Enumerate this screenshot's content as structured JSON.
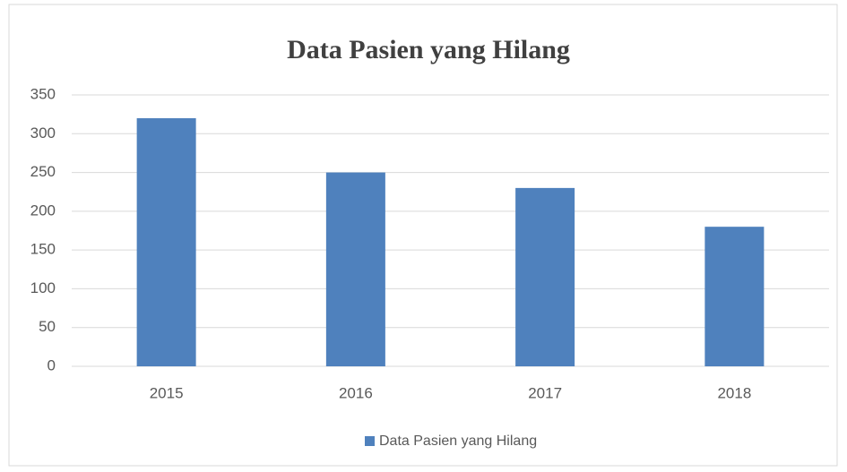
{
  "chart_data": {
    "type": "bar",
    "title": "Data Pasien yang Hilang",
    "categories": [
      "2015",
      "2016",
      "2017",
      "2018"
    ],
    "series": [
      {
        "name": "Data Pasien yang Hilang",
        "color": "#4f81bd",
        "values": [
          320,
          250,
          230,
          180
        ]
      }
    ],
    "ylim": [
      0,
      350
    ],
    "yticks": [
      0,
      50,
      100,
      150,
      200,
      250,
      300,
      350
    ],
    "grid": true,
    "legend": "bottom"
  }
}
